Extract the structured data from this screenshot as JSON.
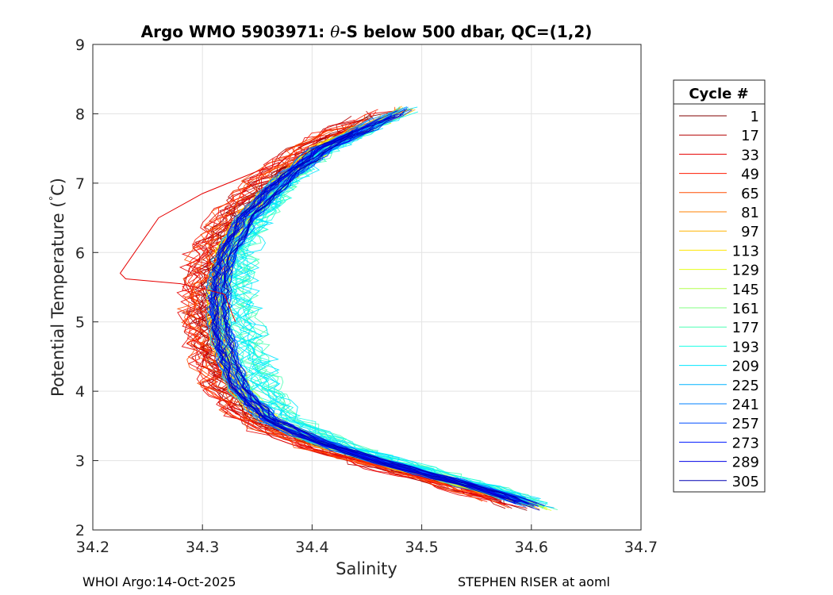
{
  "chart_data": {
    "type": "line",
    "title_prefix": "Argo WMO 5903971: ",
    "title_symbol": "θ",
    "title_suffix": "-S below 500 dbar,  QC=(1,2)",
    "xlabel": "Salinity",
    "ylabel_prefix": "Potential Temperature (",
    "ylabel_degree": "°",
    "ylabel_suffix": "C)",
    "xlim": [
      34.2,
      34.7
    ],
    "ylim": [
      2,
      9
    ],
    "grid": true,
    "x_ticks": [
      "34.2",
      "34.3",
      "34.4",
      "34.5",
      "34.6",
      "34.7"
    ],
    "y_ticks": [
      "2",
      "3",
      "4",
      "5",
      "6",
      "7",
      "8",
      "9"
    ],
    "mean_profile": {
      "temperature": [
        2.3,
        2.5,
        2.7,
        3.0,
        3.3,
        3.6,
        4.0,
        4.5,
        5.0,
        5.5,
        6.0,
        6.5,
        7.0,
        7.5,
        8.1
      ],
      "salinity": [
        34.612,
        34.575,
        34.53,
        34.46,
        34.4,
        34.36,
        34.335,
        34.322,
        34.315,
        34.315,
        34.322,
        34.34,
        34.37,
        34.41,
        34.49
      ]
    },
    "series": [
      {
        "name": "1",
        "color": "#800000"
      },
      {
        "name": "17",
        "color": "#b30000"
      },
      {
        "name": "33",
        "color": "#e60000"
      },
      {
        "name": "49",
        "color": "#ff1a00"
      },
      {
        "name": "65",
        "color": "#ff4d00"
      },
      {
        "name": "81",
        "color": "#ff8000"
      },
      {
        "name": "97",
        "color": "#ffb300"
      },
      {
        "name": "113",
        "color": "#ffe600"
      },
      {
        "name": "129",
        "color": "#e6ff1a"
      },
      {
        "name": "145",
        "color": "#b3ff4d"
      },
      {
        "name": "161",
        "color": "#80ff80"
      },
      {
        "name": "177",
        "color": "#4dffb3"
      },
      {
        "name": "193",
        "color": "#1affe6"
      },
      {
        "name": "209",
        "color": "#00e6ff"
      },
      {
        "name": "225",
        "color": "#00b3ff"
      },
      {
        "name": "241",
        "color": "#0080ff"
      },
      {
        "name": "257",
        "color": "#004dff"
      },
      {
        "name": "273",
        "color": "#001aff"
      },
      {
        "name": "289",
        "color": "#0000e6"
      },
      {
        "name": "305",
        "color": "#0000b3"
      }
    ],
    "legend_title": "Cycle #",
    "legend_position": "right-outside"
  },
  "footer": {
    "left": "WHOI Argo:14-Oct-2025",
    "right": "STEPHEN RISER at aoml"
  }
}
